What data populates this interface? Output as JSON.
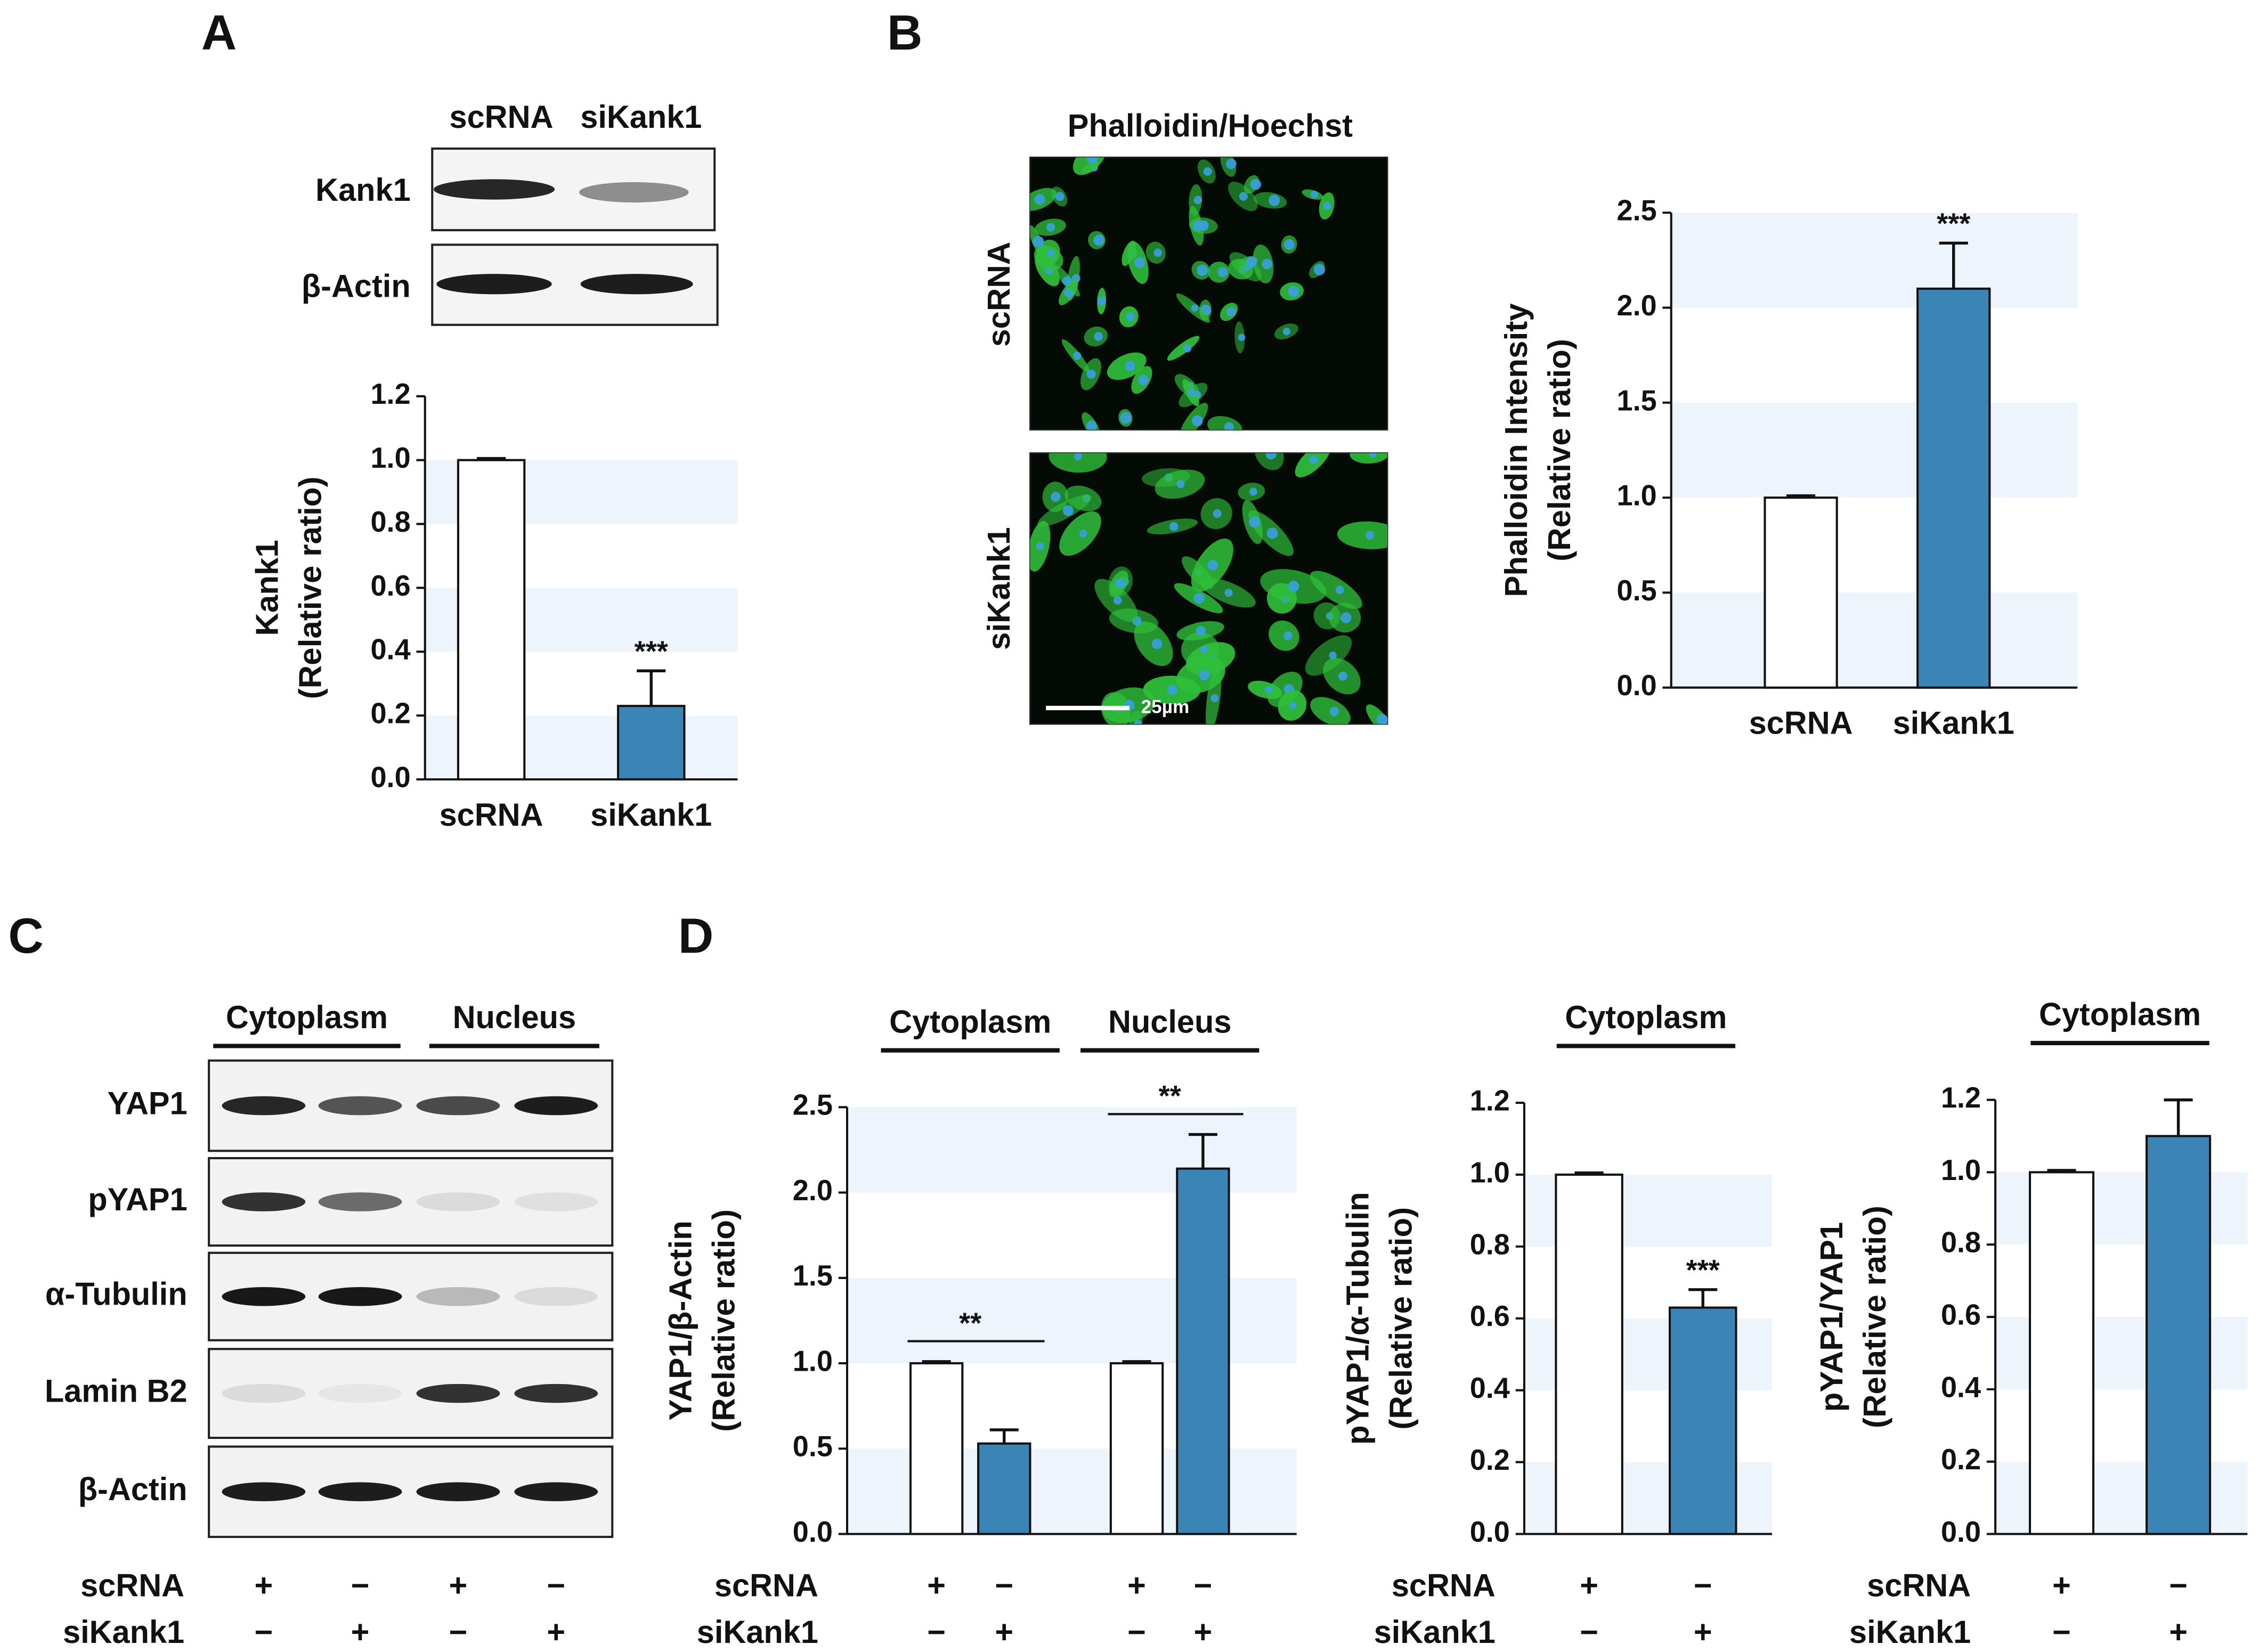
{
  "panel_labels": [
    "A",
    "B",
    "C",
    "D"
  ],
  "blot_a": {
    "lanes": [
      "scRNA",
      "siKank1"
    ],
    "rows": [
      "Kank1",
      "β-Actin"
    ]
  },
  "image_b": {
    "title": "Phalloidin/Hoechst",
    "rows": [
      "scRNA",
      "siKank1"
    ],
    "scale_bar": "25µm"
  },
  "blot_c": {
    "fractions": [
      "Cytoplasm",
      "Nucleus"
    ],
    "rows": [
      "YAP1",
      "pYAP1",
      "α-Tubulin",
      "Lamin B2",
      "β-Actin"
    ],
    "conditions": [
      {
        "name": "scRNA",
        "signs": [
          "+",
          "−",
          "+",
          "−"
        ]
      },
      {
        "name": "siKank1",
        "signs": [
          "−",
          "+",
          "−",
          "+"
        ]
      }
    ]
  },
  "chart_data": [
    {
      "type": "bar",
      "y_label": [
        "Kank1",
        "(Relative ratio)"
      ],
      "categories": [
        "scRNA",
        "siKank1"
      ],
      "values": [
        1.0,
        0.23
      ],
      "errors": [
        0.005,
        0.11
      ],
      "colors": [
        "#ffffff",
        "#3b84b6"
      ],
      "ylim": [
        0,
        1.2
      ],
      "yticks": [
        {
          "value": 0,
          "label": "0.0"
        },
        0.2,
        0.4,
        0.6,
        0.8,
        {
          "value": 1,
          "label": "1.0"
        },
        1.2
      ],
      "bands": true,
      "significance": [
        {
          "label": "***",
          "bars": [
            1
          ]
        }
      ]
    },
    {
      "type": "bar",
      "y_label": [
        "Phalloidin Intensity",
        "(Relative ratio)"
      ],
      "categories": [
        "scRNA",
        "siKank1"
      ],
      "values": [
        1.0,
        2.1
      ],
      "errors": [
        0.01,
        0.24
      ],
      "colors": [
        "#ffffff",
        "#3b84b6"
      ],
      "ylim": [
        0,
        2.5
      ],
      "yticks": [
        {
          "value": 0,
          "label": "0.0"
        },
        0.5,
        {
          "value": 1,
          "label": "1.0"
        },
        1.5,
        {
          "value": 2,
          "label": "2.0"
        },
        2.5
      ],
      "bands": true,
      "significance": [
        {
          "label": "***",
          "bars": [
            1
          ]
        }
      ]
    },
    {
      "type": "bar",
      "y_label": [
        "YAP1/β-Actin",
        "(Relative ratio)"
      ],
      "conditions": [
        {
          "name": "scRNA",
          "signs": [
            "+",
            "−",
            "+",
            "−"
          ]
        },
        {
          "name": "siKank1",
          "signs": [
            "−",
            "+",
            "−",
            "+"
          ]
        }
      ],
      "groups": [
        {
          "label": "Cytoplasm",
          "bars": [
            0,
            1
          ]
        },
        {
          "label": "Nucleus",
          "bars": [
            2,
            3
          ]
        }
      ],
      "values": [
        1.0,
        0.53,
        1.0,
        2.14
      ],
      "errors": [
        0.01,
        0.08,
        0.01,
        0.2
      ],
      "colors": [
        "#ffffff",
        "#3b84b6",
        "#ffffff",
        "#3b84b6"
      ],
      "ylim": [
        0,
        2.5
      ],
      "yticks": [
        {
          "value": 0,
          "label": "0.0"
        },
        0.5,
        {
          "value": 1,
          "label": "1.0"
        },
        1.5,
        {
          "value": 2,
          "label": "2.0"
        },
        2.5
      ],
      "bands": true,
      "significance": [
        {
          "label": "**",
          "bars": [
            0,
            1
          ]
        },
        {
          "label": "**",
          "bars": [
            2,
            3
          ]
        }
      ]
    },
    {
      "type": "bar",
      "y_label": [
        "pYAP1/α-Tubulin",
        "(Relative ratio)"
      ],
      "conditions": [
        {
          "name": "scRNA",
          "signs": [
            "+",
            "−"
          ]
        },
        {
          "name": "siKank1",
          "signs": [
            "−",
            "+"
          ]
        }
      ],
      "groups": [
        {
          "label": "Cytoplasm",
          "bars": [
            0,
            1
          ]
        }
      ],
      "values": [
        1.0,
        0.63
      ],
      "errors": [
        0.005,
        0.05
      ],
      "colors": [
        "#ffffff",
        "#3b84b6"
      ],
      "ylim": [
        0,
        1.2
      ],
      "yticks": [
        {
          "value": 0,
          "label": "0.0"
        },
        0.2,
        0.4,
        0.6,
        0.8,
        {
          "value": 1,
          "label": "1.0"
        },
        1.2
      ],
      "bands": true,
      "significance": [
        {
          "label": "***",
          "bars": [
            1
          ]
        }
      ]
    },
    {
      "type": "bar",
      "y_label": [
        "pYAP1/YAP1",
        "(Relative ratio)"
      ],
      "conditions": [
        {
          "name": "scRNA",
          "signs": [
            "+",
            "−"
          ]
        },
        {
          "name": "siKank1",
          "signs": [
            "−",
            "+"
          ]
        }
      ],
      "groups": [
        {
          "label": "Cytoplasm",
          "bars": [
            0,
            1
          ]
        }
      ],
      "values": [
        1.0,
        1.1
      ],
      "errors": [
        0.005,
        0.1
      ],
      "colors": [
        "#ffffff",
        "#3b84b6"
      ],
      "ylim": [
        0,
        1.2
      ],
      "yticks": [
        {
          "value": 0,
          "label": "0.0"
        },
        0.2,
        0.4,
        0.6,
        0.8,
        {
          "value": 1,
          "label": "1.0"
        },
        1.2
      ],
      "bands": true
    }
  ]
}
